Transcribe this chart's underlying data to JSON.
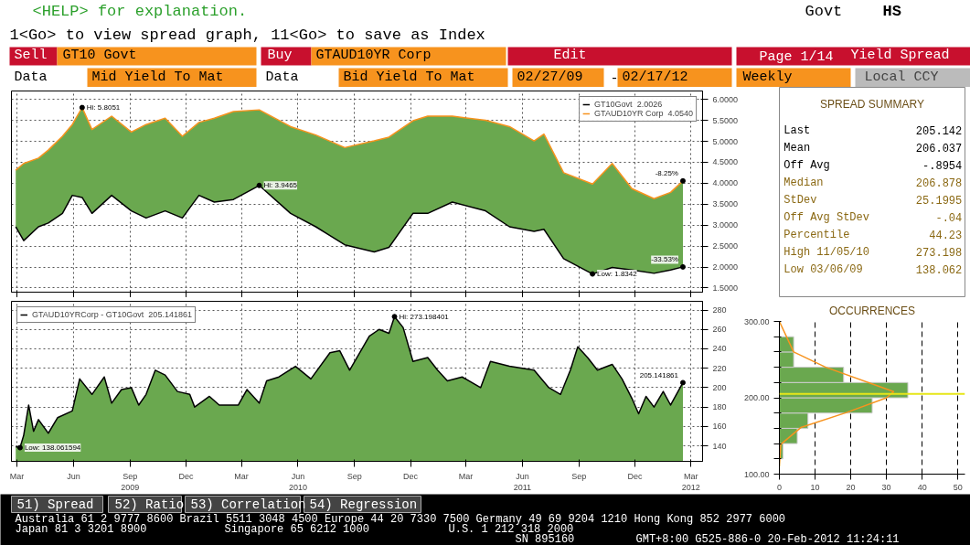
{
  "chart_data": [
    {
      "type": "area",
      "x": [
        "2009-02-27",
        "2009-03-12",
        "2009-04-05",
        "2009-04-21",
        "2009-05-14",
        "2009-05-30",
        "2009-06-15",
        "2009-07-01",
        "2009-08-02",
        "2009-09-03",
        "2009-09-27",
        "2009-10-28",
        "2009-11-25",
        "2009-12-22",
        "2010-01-16",
        "2010-02-16",
        "2010-03-30",
        "2010-05-20",
        "2010-06-30",
        "2010-08-16",
        "2010-10-03",
        "2010-10-27",
        "2010-12-05",
        "2010-12-29",
        "2011-02-07",
        "2011-04-02",
        "2011-05-11",
        "2011-06-20",
        "2011-07-06",
        "2011-08-07",
        "2011-09-23",
        "2011-10-25",
        "2011-11-26",
        "2012-01-01",
        "2012-01-28",
        "2012-02-17"
      ],
      "series": [
        {
          "name": "GT10Govt  2.0026",
          "type": "line",
          "color": "#000000",
          "values": [
            2.96,
            2.63,
            2.96,
            3.05,
            3.28,
            3.71,
            3.66,
            3.28,
            3.71,
            3.34,
            3.17,
            3.34,
            3.17,
            3.71,
            3.55,
            3.61,
            3.9465,
            3.28,
            2.96,
            2.53,
            2.36,
            2.47,
            3.28,
            3.28,
            3.55,
            3.34,
            2.96,
            2.85,
            2.9,
            2.2,
            1.8342,
            1.99,
            1.93,
            1.85,
            1.93,
            2.0026
          ],
          "lower": [
            2.96,
            2.63,
            2.96,
            3.05,
            3.28,
            3.71,
            3.66,
            3.28,
            3.71,
            3.34,
            3.17,
            3.34,
            3.17,
            3.71,
            3.55,
            3.61,
            3.9465,
            3.28,
            2.96,
            2.53,
            2.36,
            2.47,
            3.28,
            3.28,
            3.55,
            3.34,
            2.96,
            2.85,
            2.9,
            2.2,
            1.8342,
            1.99,
            1.93,
            1.85,
            1.93,
            2.0026
          ],
          "upper": [
            4.31,
            4.47,
            4.6,
            4.79,
            5.12,
            5.4,
            5.8051,
            5.28,
            5.6,
            5.22,
            5.4,
            5.55,
            5.12,
            5.45,
            5.55,
            5.71,
            5.75,
            5.35,
            5.15,
            4.85,
            5.01,
            5.1,
            5.49,
            5.6,
            5.6,
            5.5,
            5.35,
            5.01,
            5.17,
            4.25,
            3.98,
            4.47,
            3.87,
            3.63,
            3.78,
            4.054
          ]
        },
        {
          "name": "GTAUD10YR Corp  4.0540",
          "type": "line",
          "color": "#f7931e",
          "values": [
            4.31,
            4.47,
            4.6,
            4.79,
            5.12,
            5.4,
            5.8051,
            5.28,
            5.6,
            5.22,
            5.4,
            5.55,
            5.12,
            5.45,
            5.55,
            5.71,
            5.75,
            5.35,
            5.15,
            4.85,
            5.01,
            5.1,
            5.49,
            5.6,
            5.6,
            5.5,
            5.35,
            5.01,
            5.17,
            4.25,
            3.98,
            4.47,
            3.87,
            3.63,
            3.78,
            4.054
          ]
        }
      ],
      "colors": [
        "#6aa84f"
      ],
      "xlim": [
        "2009-02-20",
        "2012-03-20"
      ],
      "xticks": [
        {
          "value": "2009-03-01",
          "label": null
        },
        {
          "value": "2009-06-01",
          "label": null
        },
        {
          "value": "2009-09-01",
          "label": null
        },
        {
          "value": "2009-12-01",
          "label": null
        },
        {
          "value": "2010-03-01",
          "label": null
        },
        {
          "value": "2010-06-01",
          "label": null
        },
        {
          "value": "2010-09-01",
          "label": null
        },
        {
          "value": "2010-12-01",
          "label": null
        },
        {
          "value": "2011-03-01",
          "label": null
        },
        {
          "value": "2011-06-01",
          "label": null
        },
        {
          "value": "2011-09-01",
          "label": null
        },
        {
          "value": "2011-12-01",
          "label": null
        },
        {
          "value": "2012-03-01",
          "label": null
        }
      ],
      "ylim": [
        1.4,
        6.2
      ],
      "yticks": [
        {
          "value": 1.5,
          "label": "1.5000"
        },
        {
          "value": 2.0,
          "label": "2.0000"
        },
        {
          "value": 2.5,
          "label": "2.5000"
        },
        {
          "value": 3.0,
          "label": "3.0000"
        },
        {
          "value": 3.5,
          "label": "3.5000"
        },
        {
          "value": 4.0,
          "label": "4.0000"
        },
        {
          "value": 4.5,
          "label": "4.5000"
        },
        {
          "value": 5.0,
          "label": "5.0000"
        },
        {
          "value": 5.5,
          "label": "5.5000"
        },
        {
          "value": 6.0,
          "label": "6.0000"
        }
      ],
      "tick_labels": "y",
      "grid": true,
      "legend": "top right",
      "annotations": [
        {
          "text": "Hi: 5.8051",
          "x": "2009-06-15",
          "y": 5.8051
        },
        {
          "text": "Hi: 3.9465",
          "x": "2010-03-30",
          "y": 3.9465
        },
        {
          "text": "Low: 1.8342",
          "x": "2011-09-23",
          "y": 1.8342
        },
        {
          "text": "-8.25%",
          "x": "2012-02-17",
          "y": 4.054
        },
        {
          "text": "-33.53%",
          "x": "2012-02-17",
          "y": 2.0026
        }
      ]
    },
    {
      "type": "area",
      "x": [
        "2009-02-27",
        "2009-03-06",
        "2009-03-12",
        "2009-03-20",
        "2009-03-28",
        "2009-04-05",
        "2009-04-21",
        "2009-05-06",
        "2009-05-30",
        "2009-06-11",
        "2009-07-01",
        "2009-07-21",
        "2009-08-02",
        "2009-08-18",
        "2009-09-03",
        "2009-09-15",
        "2009-09-27",
        "2009-10-12",
        "2009-10-28",
        "2009-11-17",
        "2009-12-07",
        "2009-12-15",
        "2010-01-08",
        "2010-01-24",
        "2010-02-24",
        "2010-03-10",
        "2010-03-30",
        "2010-04-11",
        "2010-05-01",
        "2010-05-28",
        "2010-06-22",
        "2010-07-23",
        "2010-08-08",
        "2010-08-24",
        "2010-09-25",
        "2010-10-11",
        "2010-10-27",
        "2010-11-05",
        "2010-11-19",
        "2010-12-05",
        "2010-12-29",
        "2011-01-14",
        "2011-01-30",
        "2011-02-23",
        "2011-03-25",
        "2011-04-10",
        "2011-05-11",
        "2011-06-20",
        "2011-07-14",
        "2011-08-02",
        "2011-08-18",
        "2011-08-30",
        "2011-09-15",
        "2011-10-01",
        "2011-10-25",
        "2011-11-10",
        "2011-11-26",
        "2011-12-07",
        "2011-12-19",
        "2012-01-01",
        "2012-01-16",
        "2012-01-28",
        "2012-02-17"
      ],
      "series": [
        {
          "name": "GTAUD10YRCorp - GT10Govt  205.141861",
          "color": "#6aa84f",
          "values": [
            139,
            138.062,
            151,
            182,
            155,
            167,
            153,
            169,
            176,
            209,
            193,
            211,
            184,
            198,
            200,
            182,
            193,
            218,
            213,
            196,
            193,
            180,
            191,
            182,
            182,
            198,
            184,
            207,
            211,
            222,
            209,
            236,
            238,
            218,
            253,
            260,
            256,
            273.198,
            262,
            227,
            231,
            218,
            207,
            211,
            200,
            227,
            222,
            218,
            200,
            193,
            218,
            242,
            231,
            218,
            224,
            209,
            189,
            173,
            191,
            180,
            196,
            182,
            205.142
          ]
        }
      ],
      "xlim": [
        "2009-02-20",
        "2012-03-20"
      ],
      "xticks": [
        {
          "value": "2009-03-01",
          "label": "Mar"
        },
        {
          "value": "2009-06-01",
          "label": "Jun"
        },
        {
          "value": "2009-09-01",
          "label": "Sep\n2009"
        },
        {
          "value": "2009-12-01",
          "label": "Dec"
        },
        {
          "value": "2010-03-01",
          "label": "Mar"
        },
        {
          "value": "2010-06-01",
          "label": "Jun\n2010"
        },
        {
          "value": "2010-09-01",
          "label": "Sep"
        },
        {
          "value": "2010-12-01",
          "label": "Dec"
        },
        {
          "value": "2011-03-01",
          "label": "Mar"
        },
        {
          "value": "2011-06-01",
          "label": "Jun\n2011"
        },
        {
          "value": "2011-09-01",
          "label": "Sep"
        },
        {
          "value": "2011-12-01",
          "label": "Dec"
        },
        {
          "value": "2012-03-01",
          "label": "Mar\n2012"
        }
      ],
      "ylim": [
        124,
        289
      ],
      "yticks": [
        140,
        160,
        180,
        200,
        220,
        240,
        260,
        280
      ],
      "grid": true,
      "legend": "top left",
      "annotations": [
        {
          "text": "Hi: 273.198401",
          "x": "2010-11-05",
          "y": 273.198
        },
        {
          "text": "Low: 138.061594",
          "x": "2009-03-06",
          "y": 138.062
        },
        {
          "text": "205.141861",
          "x": "2012-02-17",
          "y": 205.142
        }
      ]
    },
    {
      "type": "other",
      "title": "SPREAD SUMMARY",
      "categories": [
        "Last",
        "Mean",
        "Off Avg",
        "Median",
        "StDev",
        "Off Avg StDev",
        "Percentile",
        "High 11/05/10",
        "Low 03/06/09"
      ],
      "value_labels": [
        "205.142",
        "206.037",
        "-.8954",
        "206.878",
        "25.1995",
        "-.04",
        "44.23",
        "273.198",
        "138.062"
      ],
      "colors": [
        "#000000",
        "#000000",
        "#000000",
        "#8b6914",
        "#8b6914",
        "#8b6914",
        "#8b6914",
        "#8b6914",
        "#8b6914"
      ]
    },
    {
      "type": "histogram",
      "title": "OCCURRENCES",
      "orientation": "horizontal",
      "bins": [
        120,
        140,
        160,
        180,
        200,
        220,
        240,
        260,
        280
      ],
      "values": [
        1,
        5,
        8,
        26,
        36,
        18,
        4,
        4
      ],
      "color": "#6aa84f",
      "series": [
        {
          "type": "line",
          "color": "#f7931e",
          "x": [
            300,
            260,
            240,
            208,
            200,
            181,
            161,
            139,
            110
          ],
          "values": [
            0,
            4,
            13,
            32,
            30,
            19,
            6,
            0.4,
            0
          ]
        }
      ],
      "xlim": [
        0,
        52
      ],
      "xticks": [
        0,
        10,
        20,
        30,
        40,
        50
      ],
      "ylim": [
        100,
        300
      ],
      "yticks": [
        {
          "value": 100,
          "label": "100.00"
        },
        {
          "value": 120,
          "label": null
        },
        {
          "value": 140,
          "label": null
        },
        {
          "value": 160,
          "label": null
        },
        {
          "value": 180,
          "label": null
        },
        {
          "value": 200,
          "label": "200.00"
        },
        {
          "value": 220,
          "label": null
        },
        {
          "value": 240,
          "label": null
        },
        {
          "value": 260,
          "label": null
        },
        {
          "value": 280,
          "label": null
        },
        {
          "value": 300,
          "label": "300.00"
        }
      ],
      "grid": "x",
      "ref_lines": [
        {
          "axis": "y",
          "value": 205.142,
          "color": "#e6e619"
        }
      ]
    },
    {
      "type": "other",
      "annotations": [
        "<HELP> for explanation.",
        "1<Go> to view spread graph, 11<Go> to save as Index",
        "Govt",
        "HS",
        "Sell",
        "GT10 Govt",
        "Buy",
        "GTAUD10YR Corp",
        "Edit",
        "Page 1/14",
        "Yield Spread",
        "Data",
        "Mid Yield To Mat",
        "Data",
        "Bid Yield To Mat",
        "02/27/09",
        "-",
        "02/17/12",
        "Weekly",
        "Local CCY",
        "51) Spread",
        "52) Ratio",
        "53) Correlation",
        "54) Regression",
        "Australia 61 2 9777 8600 Brazil 5511 3048 4500 Europe 44 20 7330 7500 Germany 49 69 9204 1210 Hong Kong 852 2977 6000",
        "Japan 81 3 3201 8900",
        "Singapore 65 6212 1000",
        "U.S. 1 212 318 2000",
        "SN 895160",
        "GMT+8:00 G525-886-0 20-Feb-2012 11:24:11"
      ]
    }
  ]
}
